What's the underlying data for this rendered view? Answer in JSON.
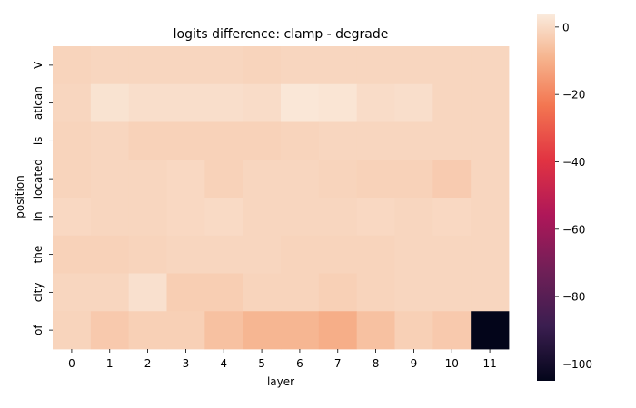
{
  "chart_data": {
    "type": "heatmap",
    "title": "logits difference: clamp - degrade",
    "xlabel": "layer",
    "ylabel": "position",
    "x_categories": [
      "0",
      "1",
      "2",
      "3",
      "4",
      "5",
      "6",
      "7",
      "8",
      "9",
      "10",
      "11"
    ],
    "y_categories": [
      "V",
      "atican",
      "is",
      "located",
      "in",
      "the",
      "city",
      "of"
    ],
    "values": [
      [
        -1.5,
        -1.0,
        -1.0,
        -1.0,
        -1.0,
        -1.5,
        -1.0,
        -1.0,
        -1.0,
        -1.0,
        -1.0,
        -1.0
      ],
      [
        -1.0,
        2.0,
        1.0,
        1.0,
        1.0,
        0.5,
        3.0,
        2.5,
        0.5,
        1.0,
        -1.0,
        -1.0
      ],
      [
        -1.5,
        -1.0,
        -2.0,
        -2.0,
        -2.0,
        -2.0,
        -1.5,
        -1.0,
        -1.0,
        -1.0,
        -1.0,
        -1.0
      ],
      [
        -1.5,
        -1.0,
        -1.0,
        -0.5,
        -2.0,
        -1.0,
        -1.0,
        -1.5,
        -2.0,
        -2.0,
        -3.5,
        -1.0
      ],
      [
        -0.5,
        -1.0,
        -1.0,
        -0.5,
        0.0,
        -1.0,
        -1.0,
        -1.0,
        -0.5,
        -1.0,
        -0.5,
        -1.0
      ],
      [
        -2.0,
        -2.0,
        -1.5,
        -1.0,
        -1.0,
        -1.0,
        -1.5,
        -1.5,
        -1.5,
        -1.0,
        -1.0,
        -1.0
      ],
      [
        -1.0,
        -1.0,
        1.5,
        -3.0,
        -3.0,
        -1.5,
        -1.5,
        -2.5,
        -1.5,
        -1.0,
        -1.0,
        -1.0
      ],
      [
        -1.5,
        -4.0,
        -2.5,
        -2.5,
        -6.0,
        -8.5,
        -8.5,
        -10.5,
        -6.0,
        -2.5,
        -4.0,
        -105.0
      ]
    ],
    "colorbar": {
      "min": -105,
      "max": 4,
      "ticks": [
        0,
        -20,
        -40,
        -60,
        -80,
        -100
      ],
      "tick_labels": [
        "0",
        "−20",
        "−40",
        "−60",
        "−80",
        "−100"
      ],
      "colormap": "rocket"
    }
  }
}
